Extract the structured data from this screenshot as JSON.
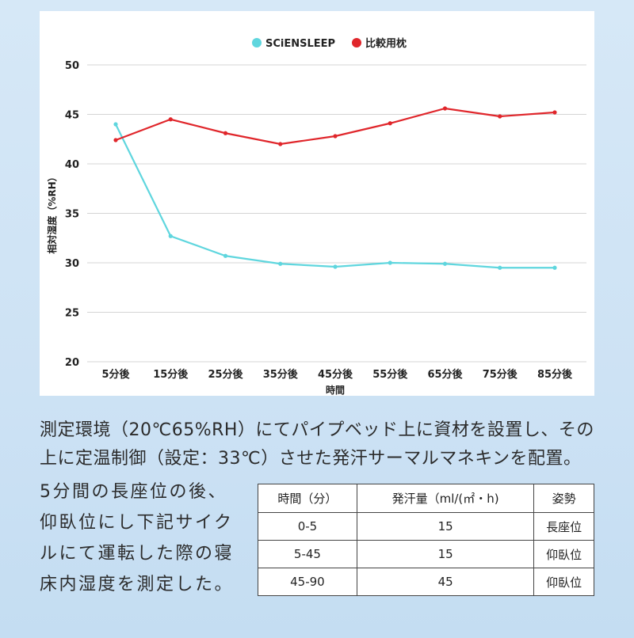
{
  "chart_data": {
    "type": "line",
    "title": "",
    "xlabel": "時間",
    "ylabel": "相対湿度（%RH）",
    "categories": [
      "5分後",
      "15分後",
      "25分後",
      "35分後",
      "45分後",
      "55分後",
      "65分後",
      "75分後",
      "85分後"
    ],
    "yticks": [
      "50",
      "45",
      "40",
      "35",
      "30",
      "25",
      "20"
    ],
    "ylim": [
      20,
      50
    ],
    "grid": true,
    "legend": "top-center",
    "series": [
      {
        "name": "SCiENSLEEP",
        "color": "#5fd6de",
        "values": [
          44.0,
          32.7,
          30.7,
          29.9,
          29.6,
          30.0,
          29.9,
          29.5,
          29.5
        ]
      },
      {
        "name": "比較用枕",
        "color": "#e0262b",
        "values": [
          42.4,
          44.5,
          43.1,
          42.0,
          42.8,
          44.1,
          45.6,
          44.8,
          45.2
        ]
      }
    ]
  },
  "description": {
    "line1": "測定環境（20℃65%RH）にてパイプベッド上に資材を設置し、その",
    "line2": "上に定温制御（設定：33℃）させた発汗サーマルマネキンを配置。",
    "side_lines": [
      "5分間の長座位の後、",
      "仰臥位にし下記サイク",
      "ルにて運転した際の寝",
      "床内湿度を測定した。"
    ]
  },
  "table": {
    "headers": [
      "時間（分）",
      "発汗量（ml/(㎡・h)",
      "姿勢"
    ],
    "rows": [
      [
        "0-5",
        "15",
        "長座位"
      ],
      [
        "5-45",
        "15",
        "仰臥位"
      ],
      [
        "45-90",
        "45",
        "仰臥位"
      ]
    ]
  }
}
